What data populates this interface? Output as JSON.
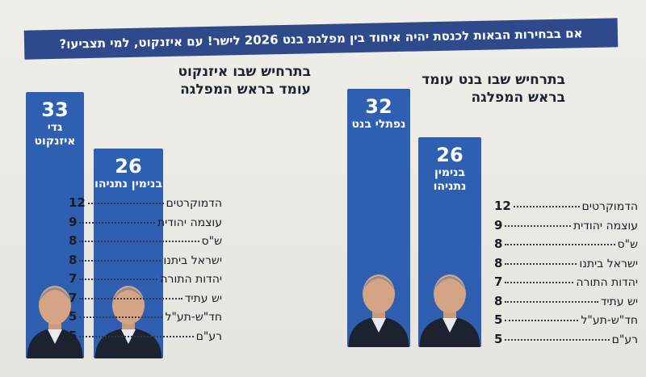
{
  "header": {
    "question": "אם בבחירות הבאות לכנסת יהיה איחוד בין מפלגת בנט 2026 לישר! עם איזנקוט, למי תצביעו?"
  },
  "colors": {
    "bar": "#2f5fb0",
    "header_bg": "#2f4a8a",
    "text": "#1e2331"
  },
  "chart_data": [
    {
      "type": "bar",
      "title": "בתרחיש שבו בנט עומד בראש המפלגה",
      "categories": [
        "נפתלי בנט",
        "בנימין נתניהו"
      ],
      "values": [
        32,
        26
      ],
      "parties": [
        {
          "name": "הדמוקרטים",
          "seats": 12
        },
        {
          "name": "עוצמה יהודית",
          "seats": 9
        },
        {
          "name": "ש\"ס",
          "seats": 8
        },
        {
          "name": "ישראל ביתנו",
          "seats": 8
        },
        {
          "name": "יהדות התורה",
          "seats": 7
        },
        {
          "name": "יש עתיד",
          "seats": 8
        },
        {
          "name": "חד\"ש-תע\"ל",
          "seats": 5
        },
        {
          "name": "רע\"ם",
          "seats": 5
        }
      ]
    },
    {
      "type": "bar",
      "title": "בתרחיש שבו איזנקוט עומד בראש המפלגה",
      "categories": [
        "גדי איזנקוט",
        "בנימין נתניהו"
      ],
      "values": [
        33,
        26
      ],
      "parties": [
        {
          "name": "הדמוקרטים",
          "seats": 12
        },
        {
          "name": "עוצמה יהודית",
          "seats": 9
        },
        {
          "name": "ש\"ס",
          "seats": 8
        },
        {
          "name": "ישראל ביתנו",
          "seats": 8
        },
        {
          "name": "יהדות התורה",
          "seats": 7
        },
        {
          "name": "יש עתיד",
          "seats": 7
        },
        {
          "name": "חד\"ש-תע\"ל",
          "seats": 5
        },
        {
          "name": "רע\"ם",
          "seats": 5
        }
      ]
    }
  ]
}
